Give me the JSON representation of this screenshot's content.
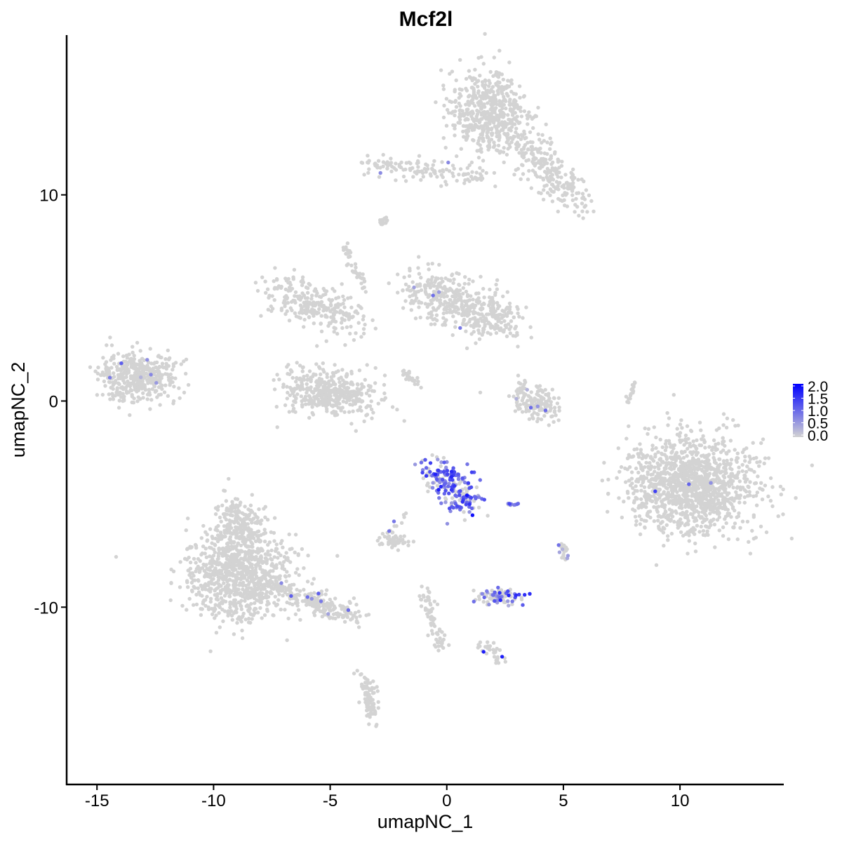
{
  "chart_data": {
    "type": "scatter",
    "title": "Mcf2l",
    "xlabel": "umapNC_1",
    "ylabel": "umapNC_2",
    "xlim": [
      -16.3,
      14.45
    ],
    "ylim": [
      -18.6,
      17.75
    ],
    "xticks": [
      -15,
      -10,
      -5,
      0,
      5,
      10
    ],
    "yticks": [
      -10,
      0,
      10
    ],
    "grid": false,
    "legend": {
      "placement": "right",
      "type": "colorbar",
      "min": 0,
      "max": 2,
      "ticks": [
        "0.0",
        "0.5",
        "1.0",
        "1.5",
        "2.0"
      ],
      "low_color": "#D3D3D3",
      "high_color": "#0000FF"
    },
    "clusters": [
      {
        "from": [
          1.8,
          14.0
        ],
        "to": [
          1.8,
          14.0
        ],
        "sd": [
          0.8,
          1.0
        ],
        "n": 520,
        "expr_frac": 0.0,
        "expr_mean": 0
      },
      {
        "from": [
          3.1,
          12.6
        ],
        "to": [
          5.6,
          9.6
        ],
        "sd": [
          0.5,
          0.45
        ],
        "n": 240,
        "expr_frac": 0.0,
        "expr_mean": 0
      },
      {
        "from": [
          -3.3,
          11.5
        ],
        "to": [
          1.6,
          10.9
        ],
        "sd": [
          0.45,
          0.25
        ],
        "n": 130,
        "expr_frac": 0.01,
        "expr_mean": 0.6
      },
      {
        "from": [
          -13.3,
          1.2
        ],
        "to": [
          -13.3,
          1.2
        ],
        "sd": [
          0.85,
          0.6
        ],
        "n": 420,
        "expr_frac": 0.01,
        "expr_mean": 0.7
      },
      {
        "from": [
          -7.2,
          5.5
        ],
        "to": [
          -4.1,
          3.8
        ],
        "sd": [
          0.55,
          0.45
        ],
        "n": 260,
        "expr_frac": 0.0,
        "expr_mean": 0
      },
      {
        "from": [
          -5.0,
          0.4
        ],
        "to": [
          -5.0,
          0.4
        ],
        "sd": [
          1.0,
          0.6
        ],
        "n": 420,
        "expr_frac": 0.0,
        "expr_mean": 0
      },
      {
        "from": [
          -1.0,
          5.3
        ],
        "to": [
          2.5,
          3.9
        ],
        "sd": [
          0.65,
          0.6
        ],
        "n": 470,
        "expr_frac": 0.01,
        "expr_mean": 0.7
      },
      {
        "from": [
          3.3,
          0.5
        ],
        "to": [
          4.3,
          -0.7
        ],
        "sd": [
          0.45,
          0.35
        ],
        "n": 150,
        "expr_frac": 0.03,
        "expr_mean": 0.7
      },
      {
        "from": [
          10.5,
          -4.05
        ],
        "to": [
          10.5,
          -4.05
        ],
        "sd": [
          1.35,
          1.15
        ],
        "n": 1300,
        "expr_frac": 0.003,
        "expr_mean": 0.8
      },
      {
        "from": [
          -0.4,
          -3.3
        ],
        "to": [
          0.9,
          -5.2
        ],
        "sd": [
          0.4,
          0.4
        ],
        "n": 200,
        "expr_frac": 0.75,
        "expr_mean": 1.0
      },
      {
        "from": [
          -8.9,
          -8.4
        ],
        "to": [
          -8.9,
          -8.4
        ],
        "sd": [
          1.1,
          1.1
        ],
        "n": 900,
        "expr_frac": 0.002,
        "expr_mean": 0.7
      },
      {
        "from": [
          -8.9,
          -6.0
        ],
        "to": [
          -8.9,
          -6.0
        ],
        "sd": [
          0.45,
          0.7
        ],
        "n": 200,
        "expr_frac": 0.0,
        "expr_mean": 0
      },
      {
        "from": [
          -7.5,
          -9.0
        ],
        "to": [
          -3.8,
          -10.5
        ],
        "sd": [
          0.35,
          0.25
        ],
        "n": 220,
        "expr_frac": 0.02,
        "expr_mean": 0.8
      },
      {
        "from": [
          2.2,
          -9.5
        ],
        "to": [
          2.2,
          -9.5
        ],
        "sd": [
          0.45,
          0.2
        ],
        "n": 90,
        "expr_frac": 0.4,
        "expr_mean": 0.9
      },
      {
        "from": [
          -2.5,
          -6.8
        ],
        "to": [
          -2.0,
          -6.8
        ],
        "sd": [
          0.25,
          0.15
        ],
        "n": 50,
        "expr_frac": 0.0,
        "expr_mean": 0
      },
      {
        "from": [
          -3.6,
          -13.3
        ],
        "to": [
          -3.2,
          -15.4
        ],
        "sd": [
          0.15,
          0.3
        ],
        "n": 80,
        "expr_frac": 0.0,
        "expr_mean": 0
      },
      {
        "from": [
          -1.0,
          -9.3
        ],
        "to": [
          -0.2,
          -12.0
        ],
        "sd": [
          0.15,
          0.2
        ],
        "n": 70,
        "expr_frac": 0.0,
        "expr_mean": 0
      },
      {
        "from": [
          8.1,
          0.9
        ],
        "to": [
          7.7,
          -0.1
        ],
        "sd": [
          0.06,
          0.1
        ],
        "n": 20,
        "expr_frac": 0.0,
        "expr_mean": 0
      },
      {
        "from": [
          4.9,
          -7.0
        ],
        "to": [
          5.1,
          -7.6
        ],
        "sd": [
          0.12,
          0.15
        ],
        "n": 22,
        "expr_frac": 0.3,
        "expr_mean": 0.7
      },
      {
        "from": [
          1.6,
          -11.9
        ],
        "to": [
          2.5,
          -12.6
        ],
        "sd": [
          0.2,
          0.15
        ],
        "n": 32,
        "expr_frac": 0.06,
        "expr_mean": 1.5
      },
      {
        "from": [
          -2.8,
          8.7
        ],
        "to": [
          -2.6,
          8.8
        ],
        "sd": [
          0.1,
          0.08
        ],
        "n": 15,
        "expr_frac": 0.0,
        "expr_mean": 0
      },
      {
        "from": [
          -4.4,
          7.6
        ],
        "to": [
          -3.5,
          5.4
        ],
        "sd": [
          0.1,
          0.15
        ],
        "n": 40,
        "expr_frac": 0.0,
        "expr_mean": 0
      },
      {
        "from": [
          -2.0,
          1.6
        ],
        "to": [
          -1.1,
          0.7
        ],
        "sd": [
          0.08,
          0.08
        ],
        "n": 25,
        "expr_frac": 0.0,
        "expr_mean": 0
      },
      {
        "from": [
          2.6,
          -5.0
        ],
        "to": [
          3.0,
          -5.0
        ],
        "sd": [
          0.08,
          0.05
        ],
        "n": 10,
        "expr_frac": 0.6,
        "expr_mean": 0.8
      },
      {
        "from": [
          -1.7,
          -5.5
        ],
        "to": [
          -2.6,
          -6.5
        ],
        "sd": [
          0.1,
          0.1
        ],
        "n": 12,
        "expr_frac": 0.2,
        "expr_mean": 0.7
      }
    ]
  }
}
